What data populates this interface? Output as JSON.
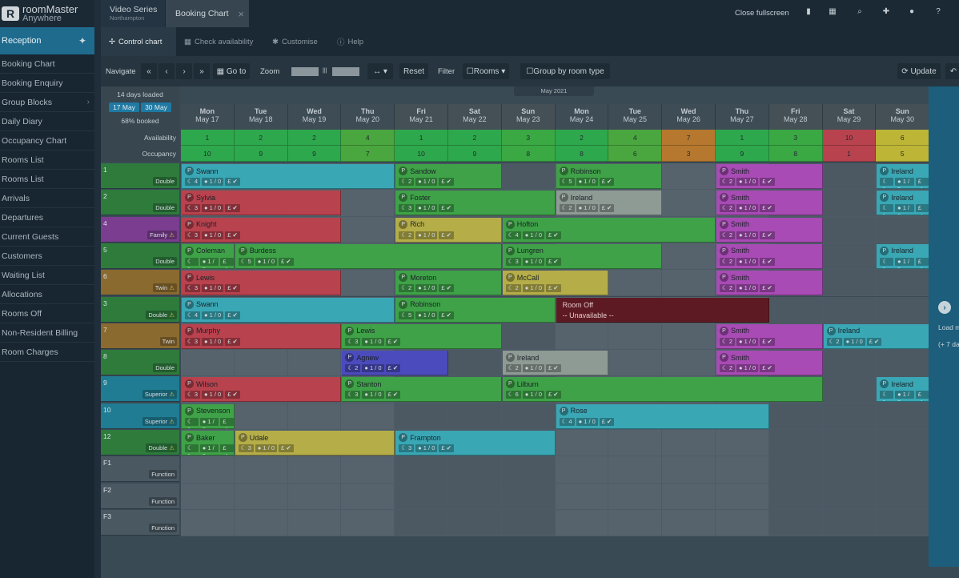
{
  "logo": {
    "line1": "roomMaster",
    "line2": "Anywhere"
  },
  "sidebar": {
    "header": "Reception",
    "items": [
      {
        "label": "Booking Chart"
      },
      {
        "label": "Booking Enquiry"
      },
      {
        "label": "Group Blocks",
        "chevron": "›"
      },
      {
        "label": "Daily Diary"
      },
      {
        "label": "Occupancy Chart"
      },
      {
        "label": "Rooms List"
      },
      {
        "label": "Rooms List"
      },
      {
        "label": "Arrivals"
      },
      {
        "label": "Departures"
      },
      {
        "label": "Current Guests"
      },
      {
        "label": "Customers"
      },
      {
        "label": "Waiting List"
      },
      {
        "label": "Allocations"
      },
      {
        "label": "Rooms Off"
      },
      {
        "label": "Non-Resident Billing"
      },
      {
        "label": "Room Charges"
      }
    ]
  },
  "tabs": {
    "tab1_title": "Video Series",
    "tab1_sub": "Northampton",
    "tab2_title": "Booking Chart",
    "close_symbol": "×"
  },
  "topbar": {
    "close_fullscreen": "Close fullscreen"
  },
  "control_tabs": [
    {
      "icon": "✢",
      "label": "Control chart"
    },
    {
      "icon": "▦",
      "label": "Check availability"
    },
    {
      "icon": "✱",
      "label": "Customise"
    },
    {
      "icon": "ⓘ",
      "label": "Help"
    }
  ],
  "toolbar": {
    "navigate": "Navigate",
    "first": "«",
    "prev": "‹",
    "next": "›",
    "last": "»",
    "goto": "Go to",
    "zoom": "Zoom",
    "zoom_sep": "|||",
    "width_toggle": "↔ ▾",
    "reset": "Reset",
    "filter": "Filter",
    "rooms": "Rooms ▾",
    "group_by": "Group by room type",
    "update": "Update"
  },
  "summary": {
    "loaded": "14 days loaded",
    "from": "17 May",
    "to": "30 May",
    "booked": "68% booked",
    "month": "May 2021"
  },
  "row_labels": {
    "availability": "Availability",
    "occupancy": "Occupancy"
  },
  "days": [
    {
      "dow": "Mon",
      "date": "May 17",
      "avail": "1",
      "occ": "10",
      "ac": "#2ea84c",
      "weekend": false
    },
    {
      "dow": "Tue",
      "date": "May 18",
      "avail": "2",
      "occ": "9",
      "ac": "#2ea84c",
      "weekend": false
    },
    {
      "dow": "Wed",
      "date": "May 19",
      "avail": "2",
      "occ": "9",
      "ac": "#2ea84c",
      "weekend": false
    },
    {
      "dow": "Thu",
      "date": "May 20",
      "avail": "4",
      "occ": "7",
      "ac": "#4aa63e",
      "weekend": false
    },
    {
      "dow": "Fri",
      "date": "May 21",
      "avail": "1",
      "occ": "10",
      "ac": "#2ea84c",
      "weekend": true
    },
    {
      "dow": "Sat",
      "date": "May 22",
      "avail": "2",
      "occ": "9",
      "ac": "#2ea84c",
      "weekend": true
    },
    {
      "dow": "Sun",
      "date": "May 23",
      "avail": "3",
      "occ": "8",
      "ac": "#3aa843",
      "weekend": true
    },
    {
      "dow": "Mon",
      "date": "May 24",
      "avail": "2",
      "occ": "8",
      "ac": "#2ea84c",
      "weekend": false
    },
    {
      "dow": "Tue",
      "date": "May 25",
      "avail": "4",
      "occ": "6",
      "ac": "#4aa63e",
      "weekend": false
    },
    {
      "dow": "Wed",
      "date": "May 26",
      "avail": "7",
      "occ": "3",
      "ac": "#b5782e",
      "weekend": false
    },
    {
      "dow": "Thu",
      "date": "May 27",
      "avail": "1",
      "occ": "9",
      "ac": "#2ea84c",
      "weekend": false
    },
    {
      "dow": "Fri",
      "date": "May 28",
      "avail": "3",
      "occ": "8",
      "ac": "#3aa843",
      "weekend": true
    },
    {
      "dow": "Sat",
      "date": "May 29",
      "avail": "10",
      "occ": "1",
      "ac": "#b8424e",
      "weekend": true
    },
    {
      "dow": "Sun",
      "date": "May 30",
      "avail": "6",
      "occ": "5",
      "ac": "#bdb536",
      "weekend": true
    }
  ],
  "rooms": [
    {
      "num": "1",
      "type": "Double",
      "color": "#2e7b3c",
      "warn": false
    },
    {
      "num": "2",
      "type": "Double",
      "color": "#2e7b3c",
      "warn": false
    },
    {
      "num": "4",
      "type": "Family",
      "color": "#7a3d8f",
      "warn": true
    },
    {
      "num": "5",
      "type": "Double",
      "color": "#2e7b3c",
      "warn": false
    },
    {
      "num": "6",
      "type": "Twin",
      "color": "#8a6a2f",
      "warn": true
    },
    {
      "num": "3",
      "type": "Double",
      "color": "#2e7b3c",
      "warn": true
    },
    {
      "num": "7",
      "type": "Twin",
      "color": "#8a6a2f",
      "warn": false
    },
    {
      "num": "8",
      "type": "Double",
      "color": "#2e7b3c",
      "warn": false
    },
    {
      "num": "9",
      "type": "Superior",
      "color": "#1f7c93",
      "warn": true
    },
    {
      "num": "10",
      "type": "Superior",
      "color": "#1f7c93",
      "warn": true
    },
    {
      "num": "12",
      "type": "Double",
      "color": "#2e7b3c",
      "warn": true
    },
    {
      "num": "F1",
      "type": "Function",
      "color": "#4a5862",
      "warn": false
    },
    {
      "num": "F2",
      "type": "Function",
      "color": "#4a5862",
      "warn": false
    },
    {
      "num": "F3",
      "type": "Function",
      "color": "#4a5862",
      "warn": false
    }
  ],
  "bookings": [
    {
      "row": 0,
      "start": 0,
      "len": 4,
      "name": "Swann",
      "nights": "4",
      "color": "#3aa7b5"
    },
    {
      "row": 0,
      "start": 4,
      "len": 2,
      "name": "Sandow",
      "nights": "2",
      "color": "#3fa248"
    },
    {
      "row": 0,
      "start": 7,
      "len": 2,
      "name": "Robinson",
      "nights": "5",
      "color": "#3fa248"
    },
    {
      "row": 0,
      "start": 10,
      "len": 2,
      "name": "Smith",
      "nights": "2",
      "color": "#a84bb5"
    },
    {
      "row": 0,
      "start": 13,
      "len": 1,
      "name": "Ireland",
      "nights": "1",
      "color": "#3aa7b5"
    },
    {
      "row": 1,
      "start": 0,
      "len": 3,
      "name": "Sylvia",
      "nights": "3",
      "color": "#b8424e"
    },
    {
      "row": 1,
      "start": 4,
      "len": 3,
      "name": "Foster",
      "nights": "3",
      "color": "#3fa248"
    },
    {
      "row": 1,
      "start": 7,
      "len": 2,
      "name": "Ireland",
      "nights": "2",
      "color": "#8e9a94"
    },
    {
      "row": 1,
      "start": 10,
      "len": 2,
      "name": "Smith",
      "nights": "2",
      "color": "#a84bb5"
    },
    {
      "row": 1,
      "start": 13,
      "len": 1,
      "name": "Ireland",
      "nights": "1",
      "color": "#3aa7b5"
    },
    {
      "row": 2,
      "start": 0,
      "len": 3,
      "name": "Knight",
      "nights": "3",
      "color": "#b8424e"
    },
    {
      "row": 2,
      "start": 4,
      "len": 2,
      "name": "Rich",
      "nights": "2",
      "color": "#b5ad48"
    },
    {
      "row": 2,
      "start": 6,
      "len": 4,
      "name": "Hofton",
      "nights": "4",
      "color": "#3fa248"
    },
    {
      "row": 2,
      "start": 10,
      "len": 2,
      "name": "Smith",
      "nights": "2",
      "color": "#a84bb5"
    },
    {
      "row": 3,
      "start": 0,
      "len": 1,
      "name": "Coleman",
      "nights": "1",
      "color": "#3fa248"
    },
    {
      "row": 3,
      "start": 1,
      "len": 5,
      "name": "Burdess",
      "nights": "5",
      "color": "#3fa248"
    },
    {
      "row": 3,
      "start": 6,
      "len": 3,
      "name": "Lungren",
      "nights": "3",
      "color": "#3fa248"
    },
    {
      "row": 3,
      "start": 10,
      "len": 2,
      "name": "Smith",
      "nights": "2",
      "color": "#a84bb5"
    },
    {
      "row": 3,
      "start": 13,
      "len": 1,
      "name": "Ireland",
      "nights": "1",
      "color": "#3aa7b5"
    },
    {
      "row": 4,
      "start": 0,
      "len": 3,
      "name": "Lewis",
      "nights": "3",
      "color": "#b8424e"
    },
    {
      "row": 4,
      "start": 4,
      "len": 2,
      "name": "Moreton",
      "nights": "2",
      "color": "#3fa248"
    },
    {
      "row": 4,
      "start": 6,
      "len": 2,
      "name": "McCall",
      "nights": "2",
      "color": "#b5ad48"
    },
    {
      "row": 4,
      "start": 10,
      "len": 2,
      "name": "Smith",
      "nights": "2",
      "color": "#a84bb5"
    },
    {
      "row": 5,
      "start": 0,
      "len": 4,
      "name": "Swann",
      "nights": "4",
      "color": "#3aa7b5"
    },
    {
      "row": 5,
      "start": 4,
      "len": 3,
      "name": "Robinson",
      "nights": "5",
      "color": "#3fa248"
    },
    {
      "row": 6,
      "start": 0,
      "len": 3,
      "name": "Murphy",
      "nights": "3",
      "color": "#b8424e"
    },
    {
      "row": 6,
      "start": 3,
      "len": 3,
      "name": "Lewis",
      "nights": "3",
      "color": "#3fa248"
    },
    {
      "row": 6,
      "start": 10,
      "len": 2,
      "name": "Smith",
      "nights": "2",
      "color": "#a84bb5"
    },
    {
      "row": 6,
      "start": 12,
      "len": 2,
      "name": "Ireland",
      "nights": "2",
      "color": "#3aa7b5"
    },
    {
      "row": 7,
      "start": 3,
      "len": 2,
      "name": "Agnew",
      "nights": "2",
      "color": "#4b4bbd"
    },
    {
      "row": 7,
      "start": 6,
      "len": 2,
      "name": "Ireland",
      "nights": "2",
      "color": "#8e9a94"
    },
    {
      "row": 7,
      "start": 10,
      "len": 2,
      "name": "Smith",
      "nights": "2",
      "color": "#a84bb5"
    },
    {
      "row": 8,
      "start": 0,
      "len": 3,
      "name": "Wilson",
      "nights": "3",
      "color": "#b8424e"
    },
    {
      "row": 8,
      "start": 3,
      "len": 3,
      "name": "Stanton",
      "nights": "3",
      "color": "#3fa248"
    },
    {
      "row": 8,
      "start": 6,
      "len": 6,
      "name": "Lilburn",
      "nights": "6",
      "color": "#3fa248"
    },
    {
      "row": 8,
      "start": 13,
      "len": 1,
      "name": "Ireland",
      "nights": "1",
      "color": "#3aa7b5"
    },
    {
      "row": 9,
      "start": 0,
      "len": 1,
      "name": "Stevenson",
      "nights": "1",
      "color": "#3fa248"
    },
    {
      "row": 9,
      "start": 7,
      "len": 4,
      "name": "Rose",
      "nights": "4",
      "color": "#3aa7b5"
    },
    {
      "row": 10,
      "start": 0,
      "len": 1,
      "name": "Baker",
      "nights": "1",
      "color": "#3fa248"
    },
    {
      "row": 10,
      "start": 1,
      "len": 3,
      "name": "Udale",
      "nights": "3",
      "color": "#b5ad48"
    },
    {
      "row": 10,
      "start": 4,
      "len": 3,
      "name": "Frampton",
      "nights": "3",
      "color": "#3aa7b5"
    }
  ],
  "booking_chip_guests": "1 / 0",
  "booking_chip_pay": "£ ✔",
  "room_off": {
    "row": 5,
    "start": 7,
    "len": 4,
    "title": "Room Off",
    "sub": "-- Unavailable --",
    "color": "#5e1a22"
  },
  "right_strip": {
    "line1": "Load m",
    "line2": "(+ 7 da"
  }
}
